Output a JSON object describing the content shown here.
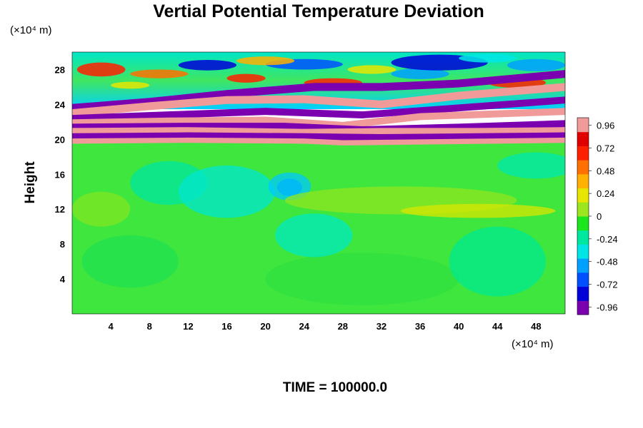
{
  "chart_data": {
    "type": "heatmap",
    "title": "Vertial Potential Temperature Deviation",
    "xlabel": "",
    "ylabel": "Height",
    "y_unit": "(×10⁴ m)",
    "x_unit": "(×10⁴ m)",
    "xlim": [
      0,
      51
    ],
    "ylim": [
      0,
      30
    ],
    "x_ticks": [
      4,
      8,
      12,
      16,
      20,
      24,
      28,
      32,
      36,
      40,
      44,
      48
    ],
    "y_ticks": [
      4,
      8,
      12,
      16,
      20,
      24,
      28
    ],
    "colorbar": {
      "range": [
        -1.04,
        1.04
      ],
      "ticks": [
        "0.96",
        "0.72",
        "0.48",
        "0.24",
        "0",
        "-0.24",
        "-0.48",
        "-0.72",
        "-0.96"
      ],
      "tick_values": [
        0.96,
        0.72,
        0.48,
        0.24,
        0,
        -0.24,
        -0.48,
        -0.72,
        -0.96
      ],
      "colors": [
        "#7a00b0",
        "#0000d8",
        "#0050ff",
        "#00a0ff",
        "#00e6e6",
        "#00e8a0",
        "#1ee61e",
        "#9be61e",
        "#e6e600",
        "#ffb000",
        "#ff7000",
        "#ff2000",
        "#e00000",
        "#f09a9a"
      ]
    },
    "fields": {
      "lower_region": {
        "y_range": [
          0,
          19.5
        ],
        "value_approx": 0.05
      },
      "wave_layer": {
        "y_range": [
          19.5,
          25
        ],
        "value_range": [
          -0.96,
          0.96
        ]
      },
      "upper_region": {
        "y_range": [
          25,
          30
        ],
        "value_range": [
          -0.72,
          0.72
        ]
      }
    },
    "grid": false,
    "legend": "colorbar-right"
  },
  "footer": {
    "time_label": "TIME = 100000.0"
  }
}
